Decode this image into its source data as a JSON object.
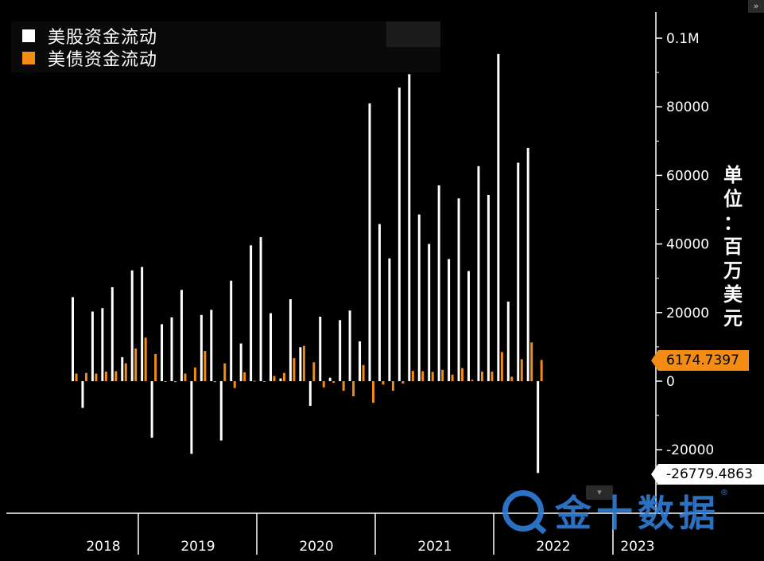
{
  "legend": {
    "items": [
      {
        "label": "美股资金流动",
        "color": "#ffffff"
      },
      {
        "label": "美债资金流动",
        "color": "#f28c14"
      }
    ]
  },
  "unit_label": [
    "单",
    "位",
    "：",
    "百",
    "万",
    "美",
    "元"
  ],
  "last_value_tags": {
    "bond": "6174.7397",
    "equity": "-26779.4863"
  },
  "watermark": {
    "text": "金十数据",
    "mark": "®"
  },
  "corner_button": "»",
  "chart_data": {
    "type": "bar",
    "title": "",
    "xlabel": "",
    "ylabel": "单位：百万美元",
    "ylim": [
      -35000,
      107000
    ],
    "yticks": [
      {
        "value": 100000,
        "label": "0.1M"
      },
      {
        "value": 80000,
        "label": "80000"
      },
      {
        "value": 60000,
        "label": "60000"
      },
      {
        "value": 40000,
        "label": "40000"
      },
      {
        "value": 20000,
        "label": "20000"
      },
      {
        "value": 0,
        "label": "0"
      },
      {
        "value": -20000,
        "label": "-20000"
      }
    ],
    "year_labels": [
      "2018",
      "2019",
      "2020",
      "2021",
      "2022",
      "2023"
    ],
    "start_month": "2018-01",
    "series": [
      {
        "name": "美股资金流动",
        "color": "#ffffff",
        "values": [
          24500,
          -7800,
          20300,
          21300,
          27400,
          7000,
          32300,
          33300,
          -16500,
          16600,
          18600,
          26600,
          -21200,
          19300,
          20800,
          -17300,
          29300,
          11000,
          39600,
          42000,
          19800,
          800,
          23900,
          9900,
          -7200,
          18800,
          1000,
          17800,
          20600,
          11600,
          81000,
          45800,
          35800,
          85600,
          89500,
          48600,
          40000,
          57100,
          35600,
          53300,
          32100,
          62700,
          54300,
          95400,
          23200,
          63700,
          68000,
          -26779.4863
        ]
      },
      {
        "name": "美债资金流动",
        "color": "#f28c14",
        "values": [
          2200,
          2400,
          2200,
          2800,
          2900,
          5200,
          9500,
          12700,
          7900,
          -200,
          -300,
          2200,
          4000,
          8800,
          -300,
          5200,
          -2000,
          2600,
          100,
          -100,
          1500,
          2400,
          6700,
          10300,
          5500,
          -1800,
          -500,
          -2800,
          -4400,
          4700,
          -6300,
          -1000,
          -2800,
          -700,
          3000,
          2900,
          2700,
          3300,
          1900,
          3800,
          400,
          2800,
          2800,
          8500,
          1300,
          6400,
          11300,
          6174.7397
        ]
      }
    ]
  }
}
